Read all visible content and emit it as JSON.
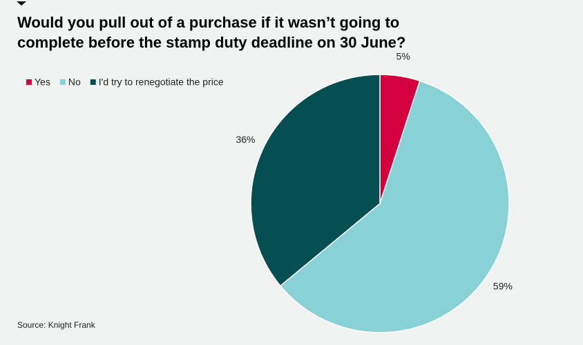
{
  "chart_data": {
    "type": "pie",
    "title": "Would you pull out of a purchase if it wasn’t going to complete before the stamp duty deadline on 30 June?",
    "categories": [
      "Yes",
      "No",
      "I'd try to renegotiate the price"
    ],
    "values": [
      5,
      59,
      36
    ],
    "value_labels": [
      "5%",
      "59%",
      "36%"
    ],
    "colors": [
      "#d2003c",
      "#88d2d7",
      "#054f52"
    ],
    "legend": "top-left",
    "source": "Source: Knight Frank"
  }
}
